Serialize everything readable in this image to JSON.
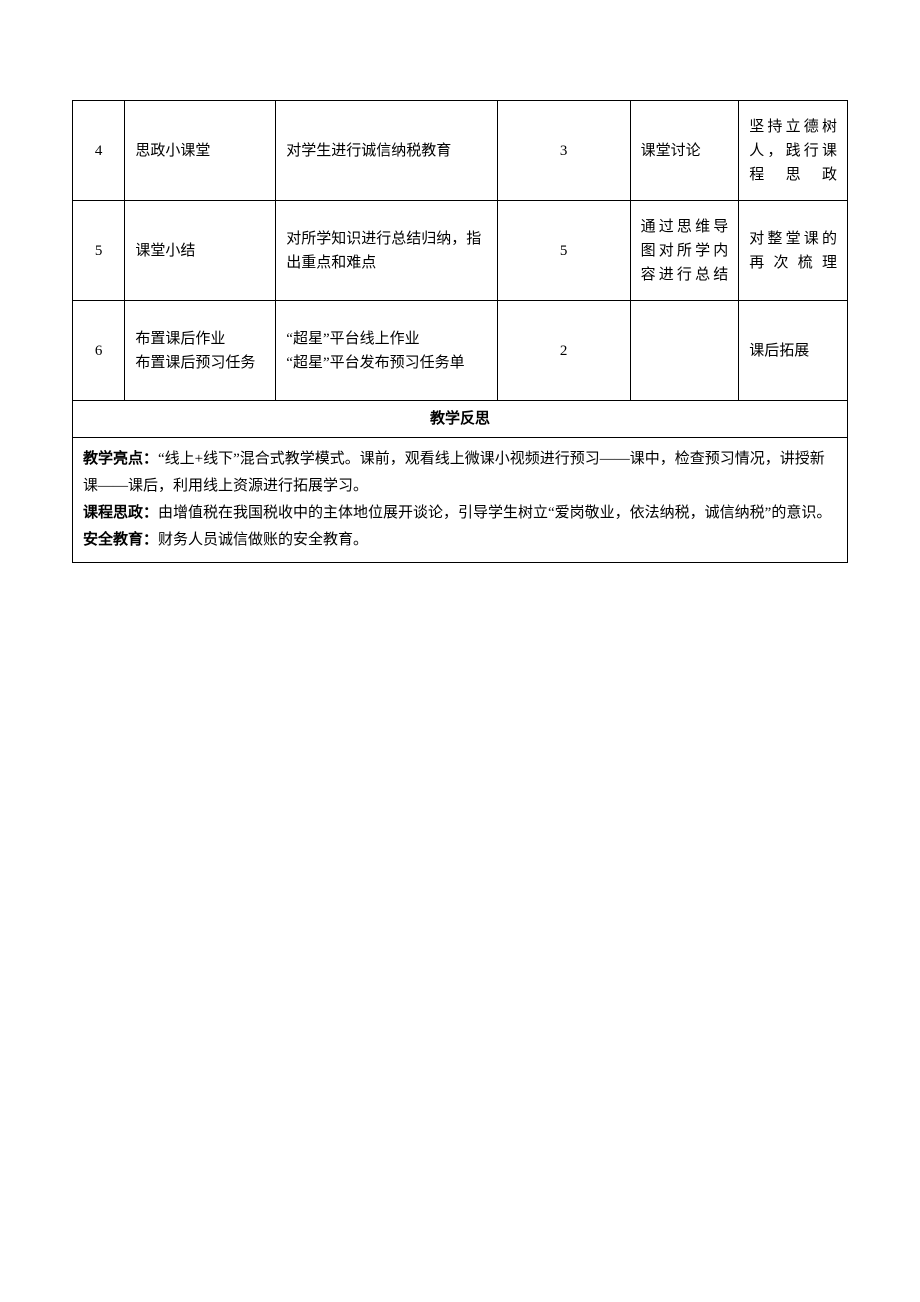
{
  "table": {
    "rows": [
      {
        "num": "4",
        "title": "思政小课堂",
        "desc": "对学生进行诚信纳税教育",
        "time": "3",
        "method": "课堂讨论",
        "purpose": "坚持立德树人，践行课程思政"
      },
      {
        "num": "5",
        "title": "课堂小结",
        "desc": "对所学知识进行总结归纳，指出重点和难点",
        "time": "5",
        "method": "通过思维导图对所学内容进行总结",
        "purpose": "对整堂课的再次梳理"
      },
      {
        "num": "6",
        "title": "布置课后作业\n布置课后预习任务",
        "desc": "“超星”平台线上作业\n“超星”平台发布预习任务单",
        "time": "2",
        "method": "",
        "purpose": "课后拓展"
      }
    ]
  },
  "reflection": {
    "header": "教学反思",
    "highlight_label": "教学亮点：",
    "highlight_text": "“线上+线下”混合式教学模式。课前，观看线上微课小视频进行预习——课中，检查预习情况，讲授新课——课后，利用线上资源进行拓展学习。",
    "ideology_label": "课程思政：",
    "ideology_text": "由增值税在我国税收中的主体地位展开谈论，引导学生树立“爱岗敬业，依法纳税，诚信纳税”的意识。",
    "safety_label": "安全教育：",
    "safety_text": "财务人员诚信做账的安全教育。"
  }
}
